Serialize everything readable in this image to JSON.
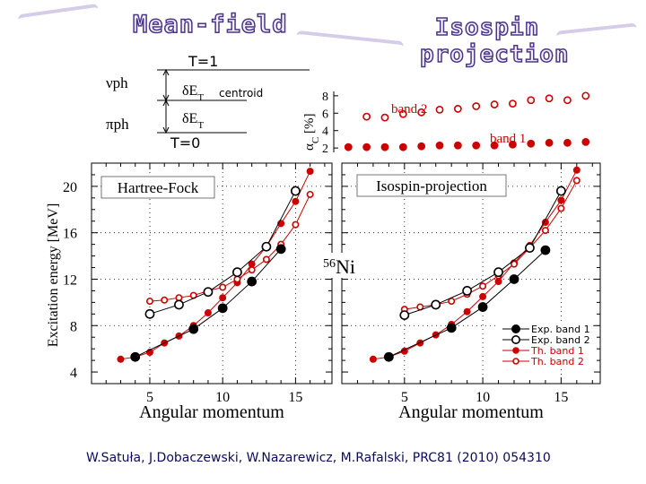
{
  "header": {
    "left_title": "Mean-field",
    "right_title": "Isospin projection"
  },
  "diagram": {
    "t1": "T=1",
    "t0": "T=0",
    "nu_ph": "νph",
    "pi_ph": "πph",
    "delta_et_1": "δE",
    "delta_et_2": "δE",
    "t_sub": "T",
    "centroid": "centroid"
  },
  "colors": {
    "exp": "#000000",
    "theory": "#cc0000",
    "title_fill": "#f4f0ff",
    "title_stroke": "#4b3588",
    "citation": "#0b0b5e"
  },
  "chart_data": [
    {
      "type": "scatter",
      "name": "alpha_c",
      "ylabel": "α",
      "ylabel_sub": "C",
      "ylabel_unit": "[%]",
      "ylim": [
        1.5,
        8.5
      ],
      "yticks": [
        2,
        4,
        6,
        8
      ],
      "annotations": [
        "band 2",
        "band 1"
      ],
      "series": [
        {
          "name": "band 2",
          "marker": "open-red",
          "x": [
            5,
            6,
            7,
            8,
            9,
            10,
            11,
            12,
            13,
            14,
            15,
            16,
            17
          ],
          "values": [
            5.6,
            5.5,
            5.9,
            6.1,
            6.4,
            6.5,
            6.8,
            7.0,
            7.1,
            7.5,
            7.7,
            7.5,
            8.0
          ]
        },
        {
          "name": "band 1",
          "marker": "filled-red",
          "x": [
            4,
            5,
            6,
            7,
            8,
            9,
            10,
            11,
            12,
            13,
            14,
            15,
            16,
            17
          ],
          "values": [
            2.1,
            2.1,
            2.1,
            2.1,
            2.2,
            2.3,
            2.3,
            2.3,
            2.3,
            2.4,
            2.5,
            2.6,
            2.6,
            2.7
          ]
        }
      ]
    },
    {
      "type": "scatter",
      "name": "hartree_fock",
      "label": "Hartree-Fock",
      "ylabel": "Excitation energy [MeV]",
      "xlabel": "Angular momentum",
      "xticks": [
        5,
        10,
        15
      ],
      "yticks": [
        4,
        8,
        12,
        16,
        20
      ],
      "xlim": [
        1,
        17.5
      ],
      "ylim": [
        3,
        22
      ],
      "series": [
        {
          "name": "Exp. band 1",
          "x": [
            4,
            8,
            10,
            12,
            14
          ],
          "values": [
            5.3,
            7.7,
            9.5,
            11.8,
            14.6
          ]
        },
        {
          "name": "Exp. band 2",
          "x": [
            5,
            7,
            9,
            11,
            13,
            15
          ],
          "values": [
            9.0,
            9.8,
            10.9,
            12.6,
            14.8,
            19.6
          ]
        },
        {
          "name": "Th. band 1",
          "x": [
            3,
            4,
            5,
            6,
            7,
            8,
            9,
            10,
            11,
            12,
            13,
            14,
            15,
            16
          ],
          "values": [
            5.1,
            5.3,
            5.7,
            6.5,
            7.1,
            8.0,
            9.1,
            10.4,
            11.7,
            13.3,
            14.8,
            16.8,
            18.7,
            21.3
          ]
        },
        {
          "name": "Th. band 2",
          "x": [
            5,
            6,
            7,
            8,
            9,
            10,
            11,
            12,
            13,
            14,
            15,
            16
          ],
          "values": [
            10.1,
            10.2,
            10.4,
            10.6,
            11.0,
            11.3,
            12.0,
            12.8,
            13.7,
            15.0,
            16.7,
            19.3
          ]
        }
      ]
    },
    {
      "type": "scatter",
      "name": "isospin_projection",
      "label": "Isospin-projection",
      "nucleus_mass": "56",
      "nucleus": "Ni",
      "xlabel": "Angular momentum",
      "xticks": [
        5,
        10,
        15
      ],
      "xlim": [
        1,
        17.5
      ],
      "ylim": [
        3,
        22
      ],
      "legend_position": "bottom-right",
      "legend": [
        "Exp. band 1",
        "Exp. band 2",
        "Th. band 1",
        "Th. band 2"
      ],
      "series": [
        {
          "name": "Exp. band 1",
          "x": [
            4,
            8,
            10,
            12,
            14
          ],
          "values": [
            5.3,
            7.8,
            9.6,
            12.0,
            14.5
          ]
        },
        {
          "name": "Exp. band 2",
          "x": [
            5,
            7,
            9,
            11,
            13,
            15
          ],
          "values": [
            8.9,
            9.8,
            11.0,
            12.6,
            14.7,
            19.6
          ]
        },
        {
          "name": "Th. band 1",
          "x": [
            3,
            4,
            5,
            6,
            7,
            8,
            9,
            10,
            11,
            12,
            13,
            14,
            15,
            16
          ],
          "values": [
            5.1,
            5.3,
            5.8,
            6.5,
            7.2,
            8.1,
            9.2,
            10.5,
            11.8,
            13.4,
            14.9,
            16.9,
            18.8,
            21.4
          ]
        },
        {
          "name": "Th. band 2",
          "x": [
            5,
            6,
            7,
            8,
            9,
            10,
            11,
            12,
            13,
            14,
            15,
            16
          ],
          "values": [
            9.4,
            9.6,
            9.8,
            10.1,
            10.7,
            11.4,
            12.3,
            13.3,
            14.7,
            16.2,
            18.1,
            20.5
          ]
        }
      ]
    }
  ],
  "citation": "W.Satuła, J.Dobaczewski, W.Nazarewicz, M.Rafalski, PRC81 (2010) 054310"
}
